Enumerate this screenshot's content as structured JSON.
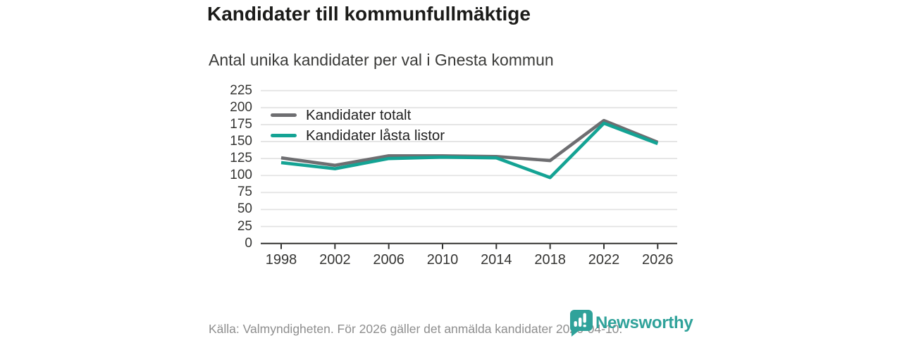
{
  "header": {
    "title": "Kandidater till kommunfullmäktige",
    "subtitle": "Antal unika kandidater per val i Gnesta kommun"
  },
  "footer": {
    "source_text": "Källa: Valmyndigheten. För 2026 gäller det anmälda kandidater 2026-04-10.",
    "brand_name": "Newsworthy"
  },
  "colors": {
    "series_total": "#6e6e71",
    "series_locked": "#14a394",
    "brand_teal": "#2fa29a",
    "grid": "#e3e3e3",
    "axis": "#333331",
    "title_text": "#1b1b19",
    "subtitle_text": "#3b3b39",
    "tick_text": "#353533",
    "footer_text": "#8e8e8e"
  },
  "chart_data": {
    "type": "line",
    "title": "Kandidater till kommunfullmäktige",
    "subtitle": "Antal unika kandidater per val i Gnesta kommun",
    "categories": [
      "1998",
      "2002",
      "2006",
      "2010",
      "2014",
      "2018",
      "2022",
      "2026"
    ],
    "series": [
      {
        "name": "Kandidater totalt",
        "color": "#6e6e71",
        "values": [
          126,
          115,
          129,
          129,
          128,
          122,
          181,
          149
        ]
      },
      {
        "name": "Kandidater låsta listor",
        "color": "#14a394",
        "values": [
          119,
          110,
          125,
          127,
          126,
          97,
          177,
          147
        ]
      }
    ],
    "ylim": [
      0,
      225
    ],
    "ytick_step": 25,
    "yticks": [
      0,
      25,
      50,
      75,
      100,
      125,
      150,
      175,
      200,
      225
    ],
    "grid": true,
    "legend_position": "top-left",
    "source": "Källa: Valmyndigheten. För 2026 gäller det anmälda kandidater 2026-04-10."
  }
}
